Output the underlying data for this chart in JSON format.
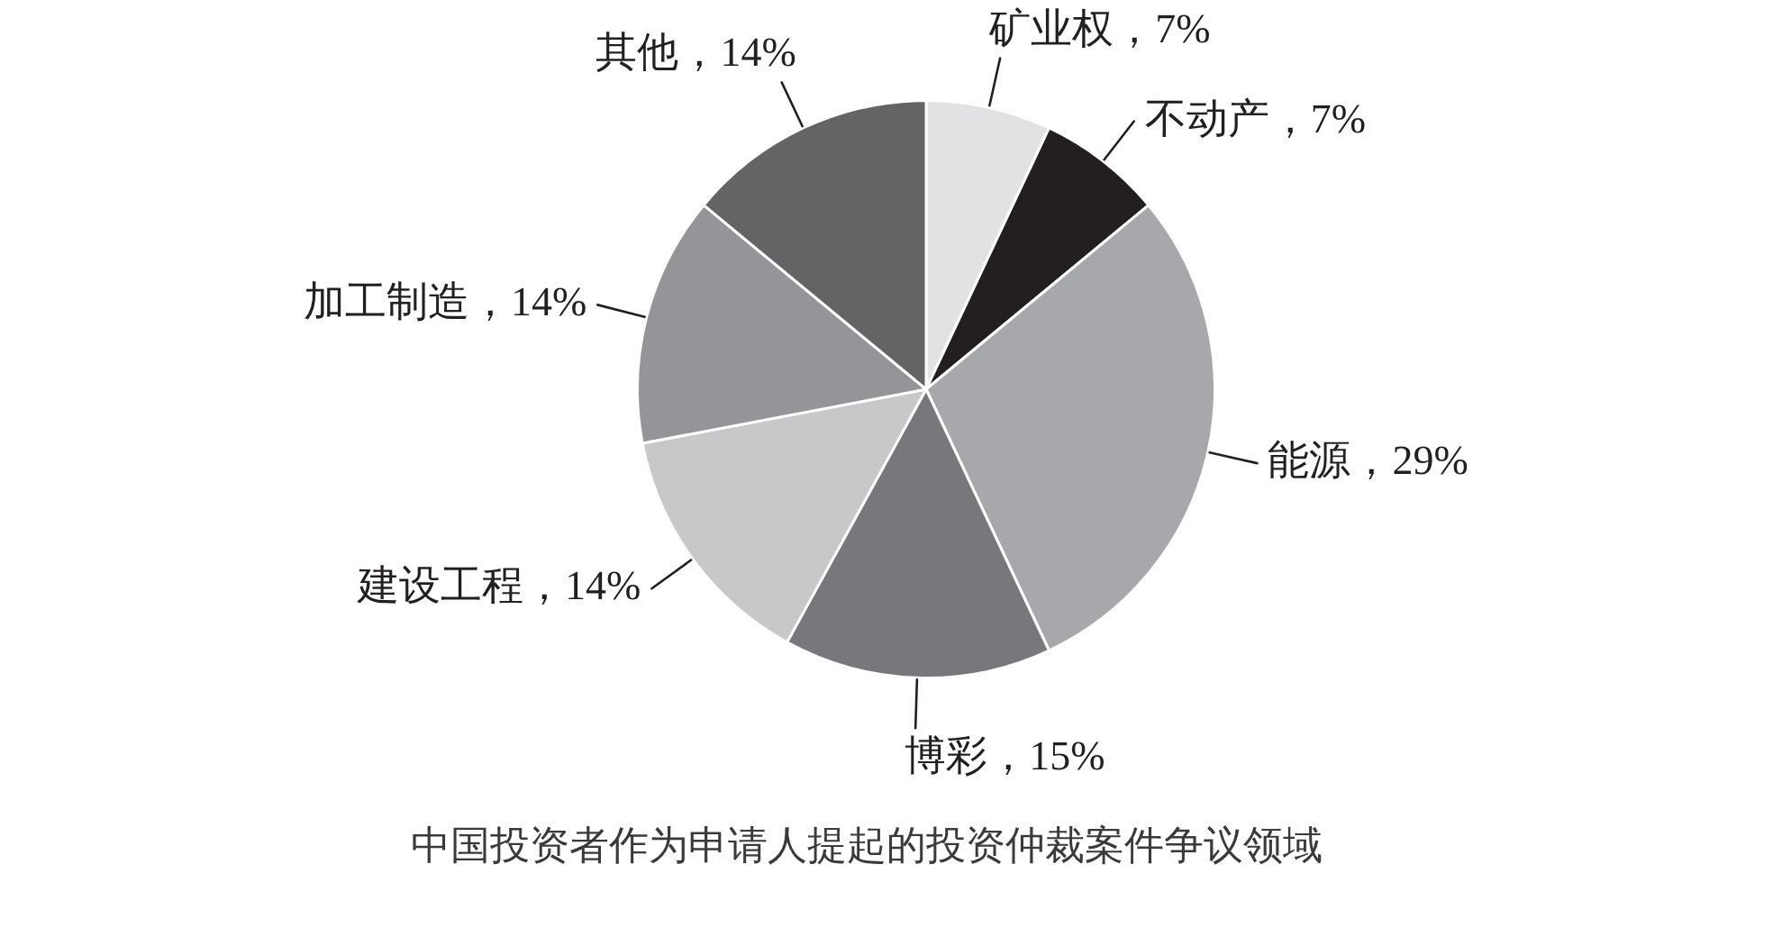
{
  "chart_data": {
    "type": "pie",
    "title": "中国投资者作为申请人提起的投资仲裁案件争议领域",
    "categories": [
      "矿业权",
      "不动产",
      "能源",
      "博彩",
      "建设工程",
      "加工制造",
      "其他"
    ],
    "values": [
      7,
      7,
      29,
      15,
      14,
      14,
      14
    ],
    "colors": [
      "#e1e2e3",
      "#231f20",
      "#a7a8ab",
      "#77787b",
      "#c7c8ca",
      "#939598",
      "#636466"
    ],
    "value_labels": [
      "，7%",
      "，7%",
      "，29%",
      "，15%",
      "，14%",
      "，14%",
      "，14%"
    ]
  }
}
